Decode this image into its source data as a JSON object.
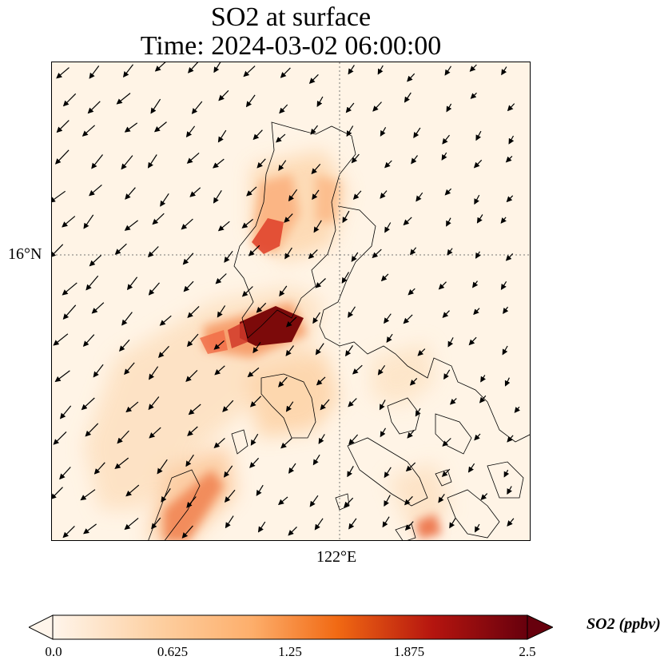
{
  "title": {
    "line1": "SO2 at surface",
    "line2": "Time: 2024-03-02 06:00:00"
  },
  "map": {
    "lat_label": "16°N",
    "lon_label": "122°E",
    "background_color": "#fff4e6",
    "coastline_color": "#000000",
    "wind_arrow_color": "#000000",
    "gridline_style": "dotted"
  },
  "colorbar": {
    "label": "SO2 (ppbv)",
    "ticks": [
      "0.0",
      "0.625",
      "1.25",
      "1.875",
      "2.5"
    ],
    "range": [
      0.0,
      2.5
    ],
    "colors": [
      "#fff5eb",
      "#fdd0a2",
      "#fdae6b",
      "#f16913",
      "#d94801",
      "#a50f15",
      "#67000d"
    ],
    "extend": "both"
  }
}
